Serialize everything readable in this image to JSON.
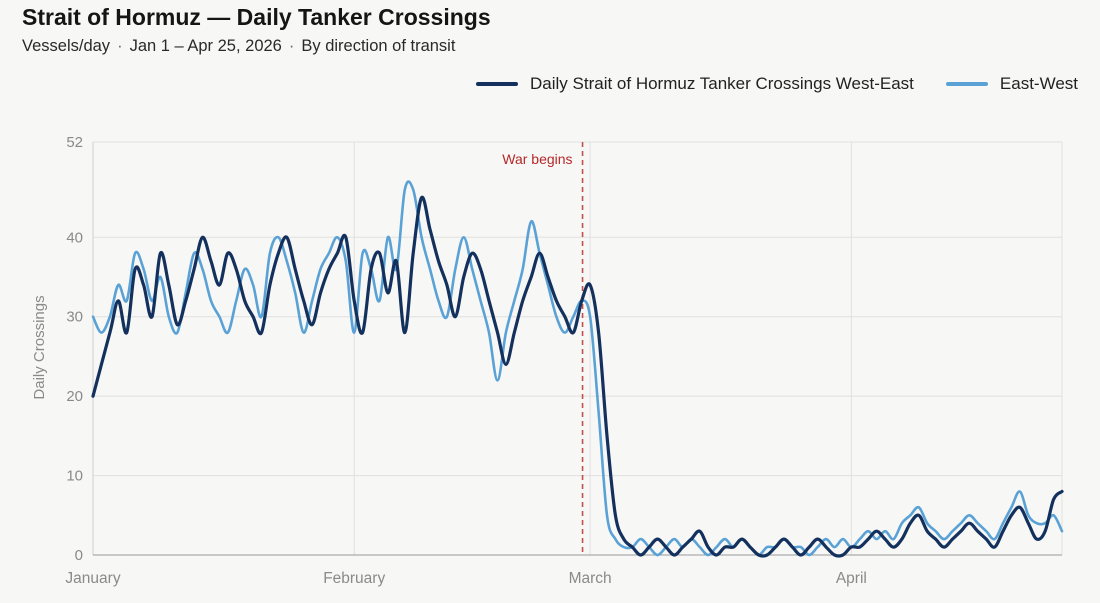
{
  "header": {
    "title": "Strait of Hormuz — Daily Tanker Crossings",
    "subtitle_unit": "Vessels/day",
    "subtitle_range": "Jan 1 – Apr 25, 2026",
    "subtitle_note": "By direction of transit",
    "separator": "·"
  },
  "colors": {
    "west_east": "#14315e",
    "east_west": "#5aa2d6",
    "annotation": "#c0504d",
    "grid": "#e0e0e0"
  },
  "chart_data": {
    "type": "line",
    "title": "Strait of Hormuz — Daily Tanker Crossings",
    "xlabel": "",
    "ylabel": "Daily Crossings",
    "ylim": [
      0,
      52
    ],
    "yticks": [
      0,
      10,
      20,
      30,
      40,
      52
    ],
    "xlim": [
      "2026-01-01",
      "2026-04-25"
    ],
    "x_tick_labels": [
      "January",
      "February",
      "March",
      "April"
    ],
    "x_tick_dates": [
      "2026-01-01",
      "2026-02-01",
      "2026-03-01",
      "2026-04-01"
    ],
    "grid": true,
    "legend_position": "top-right",
    "annotations": [
      {
        "date": "2026-02-28",
        "text": "War begins",
        "style": "dashed-vertical-line"
      }
    ],
    "series": [
      {
        "name": "Daily Strait of Hormuz Tanker Crossings West-East",
        "color_key": "west_east",
        "points": [
          [
            "2026-01-01",
            20
          ],
          [
            "2026-01-03",
            28
          ],
          [
            "2026-01-04",
            32
          ],
          [
            "2026-01-05",
            28
          ],
          [
            "2026-01-06",
            36
          ],
          [
            "2026-01-07",
            34
          ],
          [
            "2026-01-08",
            30
          ],
          [
            "2026-01-09",
            38
          ],
          [
            "2026-01-10",
            34
          ],
          [
            "2026-01-11",
            29
          ],
          [
            "2026-01-12",
            32
          ],
          [
            "2026-01-13",
            36
          ],
          [
            "2026-01-14",
            40
          ],
          [
            "2026-01-15",
            37
          ],
          [
            "2026-01-16",
            34
          ],
          [
            "2026-01-17",
            38
          ],
          [
            "2026-01-18",
            36
          ],
          [
            "2026-01-19",
            32
          ],
          [
            "2026-01-20",
            30
          ],
          [
            "2026-01-21",
            28
          ],
          [
            "2026-01-22",
            34
          ],
          [
            "2026-01-23",
            38
          ],
          [
            "2026-01-24",
            40
          ],
          [
            "2026-01-25",
            36
          ],
          [
            "2026-01-26",
            32
          ],
          [
            "2026-01-27",
            29
          ],
          [
            "2026-01-28",
            33
          ],
          [
            "2026-01-29",
            36
          ],
          [
            "2026-01-30",
            38
          ],
          [
            "2026-01-31",
            40
          ],
          [
            "2026-02-01",
            32
          ],
          [
            "2026-02-02",
            28
          ],
          [
            "2026-02-03",
            36
          ],
          [
            "2026-02-04",
            38
          ],
          [
            "2026-02-05",
            33
          ],
          [
            "2026-02-06",
            37
          ],
          [
            "2026-02-07",
            28
          ],
          [
            "2026-02-08",
            38
          ],
          [
            "2026-02-09",
            45
          ],
          [
            "2026-02-10",
            41
          ],
          [
            "2026-02-11",
            37
          ],
          [
            "2026-02-12",
            34
          ],
          [
            "2026-02-13",
            30
          ],
          [
            "2026-02-14",
            35
          ],
          [
            "2026-02-15",
            38
          ],
          [
            "2026-02-16",
            36
          ],
          [
            "2026-02-17",
            32
          ],
          [
            "2026-02-18",
            28
          ],
          [
            "2026-02-19",
            24
          ],
          [
            "2026-02-20",
            28
          ],
          [
            "2026-02-21",
            32
          ],
          [
            "2026-02-22",
            35
          ],
          [
            "2026-02-23",
            38
          ],
          [
            "2026-02-24",
            35
          ],
          [
            "2026-02-25",
            32
          ],
          [
            "2026-02-26",
            30
          ],
          [
            "2026-02-27",
            28
          ],
          [
            "2026-02-28",
            32
          ],
          [
            "2026-03-01",
            34
          ],
          [
            "2026-03-02",
            28
          ],
          [
            "2026-03-03",
            15
          ],
          [
            "2026-03-04",
            5
          ],
          [
            "2026-03-05",
            2
          ],
          [
            "2026-03-06",
            1
          ],
          [
            "2026-03-07",
            0
          ],
          [
            "2026-03-08",
            1
          ],
          [
            "2026-03-09",
            2
          ],
          [
            "2026-03-10",
            1
          ],
          [
            "2026-03-11",
            0
          ],
          [
            "2026-03-12",
            1
          ],
          [
            "2026-03-13",
            2
          ],
          [
            "2026-03-14",
            3
          ],
          [
            "2026-03-15",
            1
          ],
          [
            "2026-03-16",
            0
          ],
          [
            "2026-03-17",
            1
          ],
          [
            "2026-03-18",
            1
          ],
          [
            "2026-03-19",
            2
          ],
          [
            "2026-03-20",
            1
          ],
          [
            "2026-03-21",
            0
          ],
          [
            "2026-03-22",
            0
          ],
          [
            "2026-03-23",
            1
          ],
          [
            "2026-03-24",
            2
          ],
          [
            "2026-03-25",
            1
          ],
          [
            "2026-03-26",
            0
          ],
          [
            "2026-03-27",
            1
          ],
          [
            "2026-03-28",
            2
          ],
          [
            "2026-03-29",
            1
          ],
          [
            "2026-03-30",
            0
          ],
          [
            "2026-03-31",
            0
          ],
          [
            "2026-04-01",
            1
          ],
          [
            "2026-04-02",
            1
          ],
          [
            "2026-04-03",
            2
          ],
          [
            "2026-04-04",
            3
          ],
          [
            "2026-04-05",
            2
          ],
          [
            "2026-04-06",
            1
          ],
          [
            "2026-04-07",
            2
          ],
          [
            "2026-04-08",
            4
          ],
          [
            "2026-04-09",
            5
          ],
          [
            "2026-04-10",
            3
          ],
          [
            "2026-04-11",
            2
          ],
          [
            "2026-04-12",
            1
          ],
          [
            "2026-04-13",
            2
          ],
          [
            "2026-04-14",
            3
          ],
          [
            "2026-04-15",
            4
          ],
          [
            "2026-04-16",
            3
          ],
          [
            "2026-04-17",
            2
          ],
          [
            "2026-04-18",
            1
          ],
          [
            "2026-04-19",
            3
          ],
          [
            "2026-04-20",
            5
          ],
          [
            "2026-04-21",
            6
          ],
          [
            "2026-04-22",
            4
          ],
          [
            "2026-04-23",
            2
          ],
          [
            "2026-04-24",
            3
          ],
          [
            "2026-04-25",
            7
          ],
          [
            "2026-04-26",
            8
          ]
        ]
      },
      {
        "name": "East-West",
        "color_key": "east_west",
        "points": [
          [
            "2026-01-01",
            30
          ],
          [
            "2026-01-02",
            28
          ],
          [
            "2026-01-03",
            30
          ],
          [
            "2026-01-04",
            34
          ],
          [
            "2026-01-05",
            32
          ],
          [
            "2026-01-06",
            38
          ],
          [
            "2026-01-07",
            36
          ],
          [
            "2026-01-08",
            32
          ],
          [
            "2026-01-09",
            35
          ],
          [
            "2026-01-10",
            30
          ],
          [
            "2026-01-11",
            28
          ],
          [
            "2026-01-12",
            33
          ],
          [
            "2026-01-13",
            38
          ],
          [
            "2026-01-14",
            36
          ],
          [
            "2026-01-15",
            32
          ],
          [
            "2026-01-16",
            30
          ],
          [
            "2026-01-17",
            28
          ],
          [
            "2026-01-18",
            32
          ],
          [
            "2026-01-19",
            36
          ],
          [
            "2026-01-20",
            34
          ],
          [
            "2026-01-21",
            30
          ],
          [
            "2026-01-22",
            38
          ],
          [
            "2026-01-23",
            40
          ],
          [
            "2026-01-24",
            37
          ],
          [
            "2026-01-25",
            33
          ],
          [
            "2026-01-26",
            28
          ],
          [
            "2026-01-27",
            32
          ],
          [
            "2026-01-28",
            36
          ],
          [
            "2026-01-29",
            38
          ],
          [
            "2026-01-30",
            40
          ],
          [
            "2026-01-31",
            37
          ],
          [
            "2026-02-01",
            28
          ],
          [
            "2026-02-02",
            38
          ],
          [
            "2026-02-03",
            36
          ],
          [
            "2026-02-04",
            32
          ],
          [
            "2026-02-05",
            40
          ],
          [
            "2026-02-06",
            36
          ],
          [
            "2026-02-07",
            46
          ],
          [
            "2026-02-08",
            46
          ],
          [
            "2026-02-09",
            40
          ],
          [
            "2026-02-10",
            36
          ],
          [
            "2026-02-11",
            32
          ],
          [
            "2026-02-12",
            30
          ],
          [
            "2026-02-13",
            36
          ],
          [
            "2026-02-14",
            40
          ],
          [
            "2026-02-15",
            36
          ],
          [
            "2026-02-16",
            32
          ],
          [
            "2026-02-17",
            28
          ],
          [
            "2026-02-18",
            22
          ],
          [
            "2026-02-19",
            28
          ],
          [
            "2026-02-20",
            32
          ],
          [
            "2026-02-21",
            36
          ],
          [
            "2026-02-22",
            42
          ],
          [
            "2026-02-23",
            38
          ],
          [
            "2026-02-24",
            34
          ],
          [
            "2026-02-25",
            30
          ],
          [
            "2026-02-26",
            28
          ],
          [
            "2026-02-27",
            30
          ],
          [
            "2026-02-28",
            32
          ],
          [
            "2026-03-01",
            30
          ],
          [
            "2026-03-02",
            18
          ],
          [
            "2026-03-03",
            5
          ],
          [
            "2026-03-04",
            2
          ],
          [
            "2026-03-05",
            1
          ],
          [
            "2026-03-06",
            1
          ],
          [
            "2026-03-07",
            2
          ],
          [
            "2026-03-08",
            1
          ],
          [
            "2026-03-09",
            0
          ],
          [
            "2026-03-10",
            1
          ],
          [
            "2026-03-11",
            2
          ],
          [
            "2026-03-12",
            1
          ],
          [
            "2026-03-13",
            2
          ],
          [
            "2026-03-14",
            1
          ],
          [
            "2026-03-15",
            0
          ],
          [
            "2026-03-16",
            1
          ],
          [
            "2026-03-17",
            2
          ],
          [
            "2026-03-18",
            1
          ],
          [
            "2026-03-19",
            2
          ],
          [
            "2026-03-20",
            1
          ],
          [
            "2026-03-21",
            0
          ],
          [
            "2026-03-22",
            1
          ],
          [
            "2026-03-23",
            1
          ],
          [
            "2026-03-24",
            2
          ],
          [
            "2026-03-25",
            1
          ],
          [
            "2026-03-26",
            1
          ],
          [
            "2026-03-27",
            0
          ],
          [
            "2026-03-28",
            1
          ],
          [
            "2026-03-29",
            2
          ],
          [
            "2026-03-30",
            1
          ],
          [
            "2026-03-31",
            2
          ],
          [
            "2026-04-01",
            1
          ],
          [
            "2026-04-02",
            2
          ],
          [
            "2026-04-03",
            3
          ],
          [
            "2026-04-04",
            2
          ],
          [
            "2026-04-05",
            3
          ],
          [
            "2026-04-06",
            2
          ],
          [
            "2026-04-07",
            4
          ],
          [
            "2026-04-08",
            5
          ],
          [
            "2026-04-09",
            6
          ],
          [
            "2026-04-10",
            4
          ],
          [
            "2026-04-11",
            3
          ],
          [
            "2026-04-12",
            2
          ],
          [
            "2026-04-13",
            3
          ],
          [
            "2026-04-14",
            4
          ],
          [
            "2026-04-15",
            5
          ],
          [
            "2026-04-16",
            4
          ],
          [
            "2026-04-17",
            3
          ],
          [
            "2026-04-18",
            2
          ],
          [
            "2026-04-19",
            4
          ],
          [
            "2026-04-20",
            6
          ],
          [
            "2026-04-21",
            8
          ],
          [
            "2026-04-22",
            5
          ],
          [
            "2026-04-23",
            4
          ],
          [
            "2026-04-24",
            4
          ],
          [
            "2026-04-25",
            5
          ],
          [
            "2026-04-26",
            3
          ]
        ]
      }
    ]
  }
}
